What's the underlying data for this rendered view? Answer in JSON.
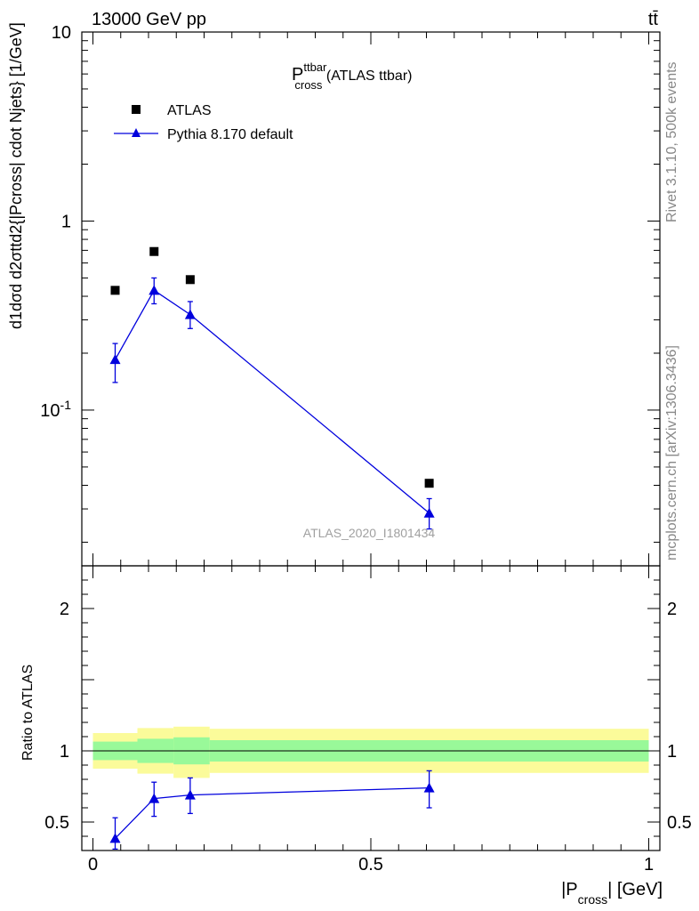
{
  "header": {
    "energy_label": "13000 GeV pp",
    "process_label": "tt̄"
  },
  "side_labels": {
    "rivet": "Rivet 3.1.10,  500k events",
    "mcplots": "mcplots.cern.ch [arXiv:1306.3436]"
  },
  "watermark": "ATLAS_2020_I1801434",
  "chart_data": [
    {
      "type": "scatter",
      "title": {
        "main": "P",
        "sup": "ttbar",
        "sub": "cross",
        "suffix": " (ATLAS ttbar)"
      },
      "ylabel": "d1dσd d2σttd2{|Pcross| cdot Njets} [1/GeV]",
      "y_scale": "log",
      "ylim": [
        0.015,
        10
      ],
      "xlim": [
        -0.02,
        1.02
      ],
      "y_tick_labels": [
        "10",
        "1",
        "10^-1"
      ],
      "legend_position": "top-left",
      "legend": [
        "ATLAS",
        "Pythia 8.170 default"
      ],
      "series": [
        {
          "name": "ATLAS",
          "marker": "square",
          "color": "#000000",
          "x": [
            0.04,
            0.11,
            0.175,
            0.605
          ],
          "y": [
            0.43,
            0.69,
            0.49,
            0.041
          ]
        },
        {
          "name": "Pythia 8.170 default",
          "marker": "triangle",
          "color": "#0000dd",
          "x": [
            0.04,
            0.11,
            0.175,
            0.605
          ],
          "y": [
            0.185,
            0.43,
            0.32,
            0.0285
          ],
          "yerr_low": [
            0.14,
            0.365,
            0.27,
            0.0235
          ],
          "yerr_high": [
            0.225,
            0.5,
            0.375,
            0.034
          ]
        }
      ]
    },
    {
      "type": "line",
      "ylabel": "Ratio to ATLAS",
      "xlabel": "|Pcross| [GeV]",
      "xlim": [
        -0.02,
        1.02
      ],
      "ylim": [
        0.3,
        2.3
      ],
      "x_tick_labels": [
        "0",
        "0.5",
        "1"
      ],
      "y_tick_labels": [
        "0.5",
        "1",
        "2"
      ],
      "bands": [
        {
          "x0": 0.0,
          "x1": 0.08,
          "stat_lo": 0.935,
          "stat_hi": 1.065,
          "tot_lo": 0.875,
          "tot_hi": 1.125
        },
        {
          "x0": 0.08,
          "x1": 0.145,
          "stat_lo": 0.915,
          "stat_hi": 1.085,
          "tot_lo": 0.84,
          "tot_hi": 1.16
        },
        {
          "x0": 0.145,
          "x1": 0.21,
          "stat_lo": 0.905,
          "stat_hi": 1.095,
          "tot_lo": 0.81,
          "tot_hi": 1.17
        },
        {
          "x0": 0.21,
          "x1": 1.0,
          "stat_lo": 0.925,
          "stat_hi": 1.075,
          "tot_lo": 0.845,
          "tot_hi": 1.155
        }
      ],
      "series": [
        {
          "name": "Pythia 8.170 default",
          "color": "#0000dd",
          "x": [
            0.04,
            0.11,
            0.175,
            0.605
          ],
          "y": [
            0.385,
            0.665,
            0.69,
            0.74
          ],
          "yerr_low": [
            0.31,
            0.54,
            0.56,
            0.6
          ],
          "yerr_high": [
            0.53,
            0.78,
            0.81,
            0.86
          ]
        }
      ]
    }
  ]
}
